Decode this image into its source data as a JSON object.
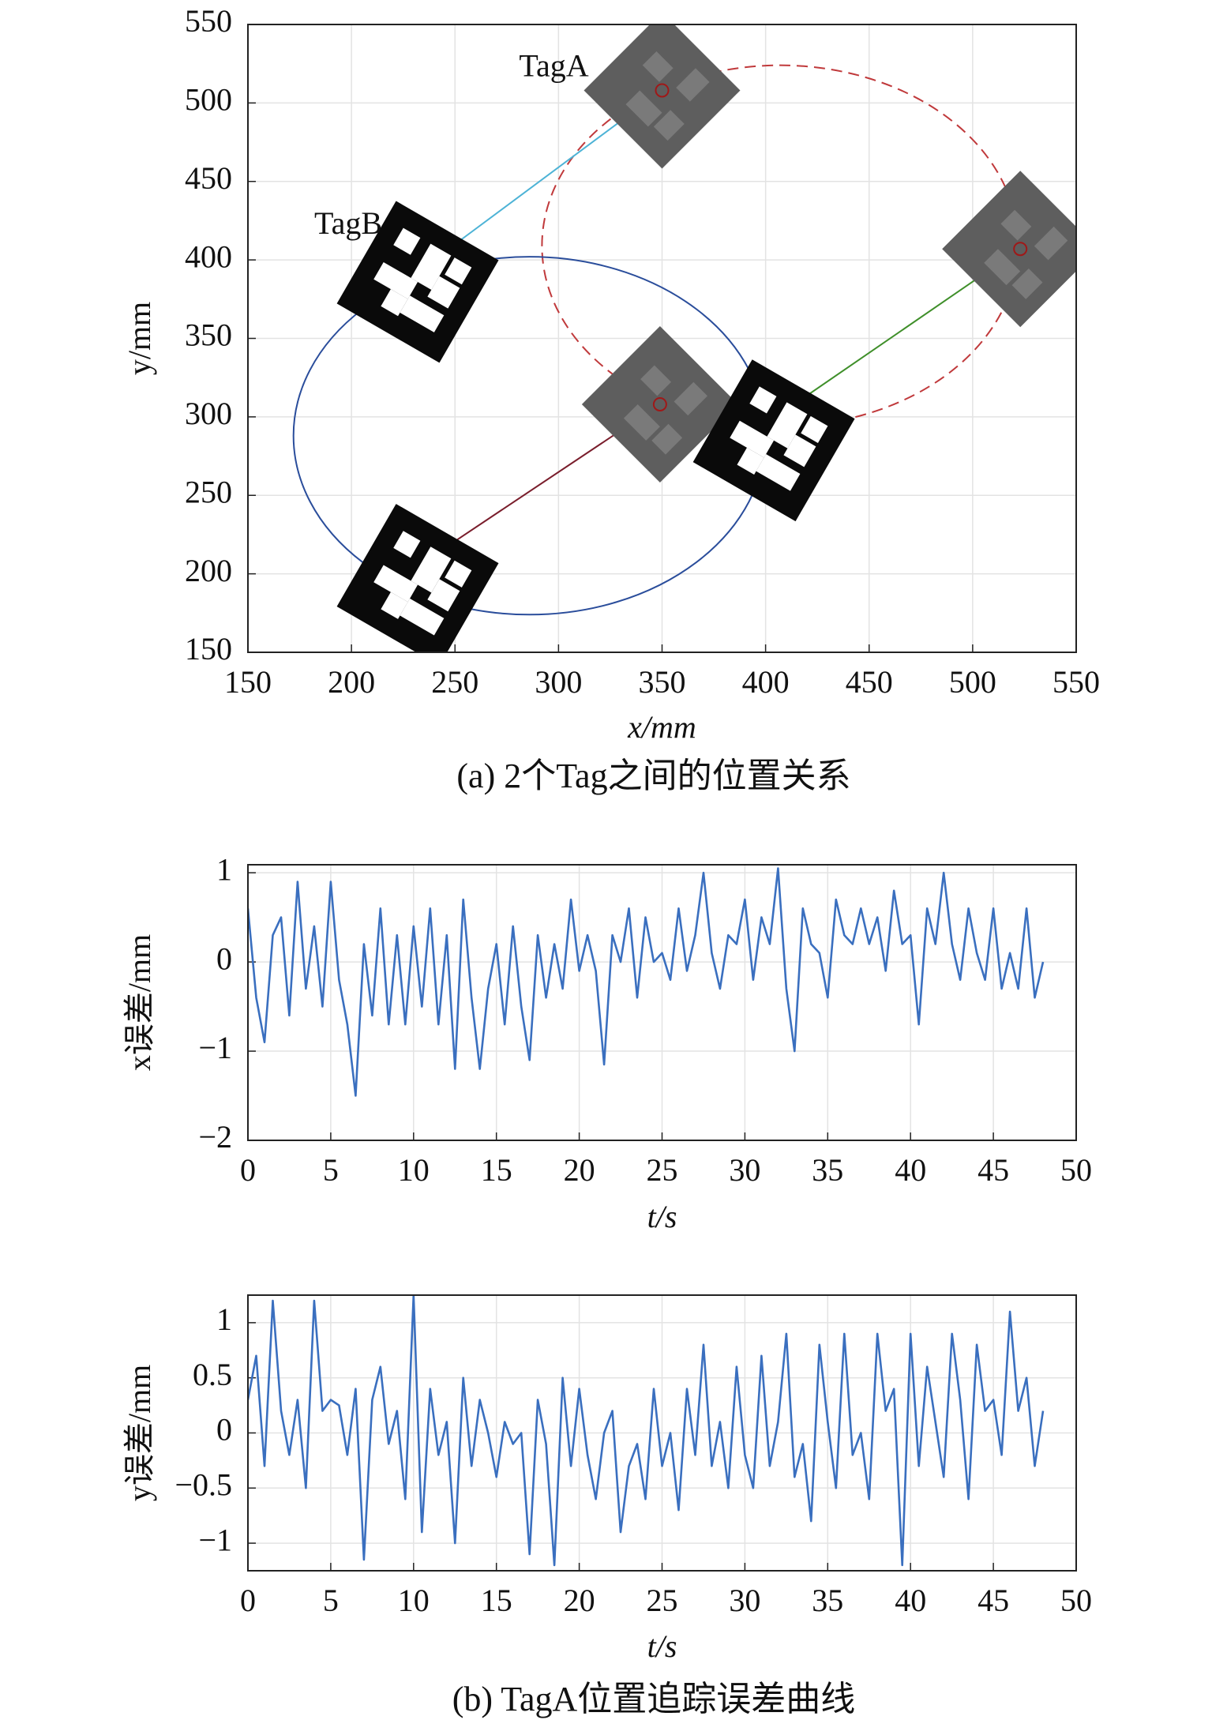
{
  "chart_data": [
    {
      "type": "scatter",
      "caption": "(a) 2个Tag之间的位置关系",
      "xlabel": "x/mm",
      "ylabel": "y/mm",
      "xlim": [
        150,
        550
      ],
      "ylim": [
        150,
        550
      ],
      "xticks": [
        150,
        200,
        250,
        300,
        350,
        400,
        450,
        500,
        550
      ],
      "yticks": [
        150,
        200,
        250,
        300,
        350,
        400,
        450,
        500,
        550
      ],
      "grid": true,
      "circles": [
        {
          "cx": 407,
          "cy": 409,
          "r": 115,
          "color": "#c0393b",
          "dashed": true
        },
        {
          "cx": 286,
          "cy": 288,
          "r": 114,
          "color": "#2a4d9b",
          "dashed": false
        }
      ],
      "segments": [
        {
          "x": [
            250,
            350
          ],
          "y": [
            410,
            508
          ],
          "color": "#4db3d6"
        },
        {
          "x": [
            405,
            523
          ],
          "y": [
            300,
            407
          ],
          "color": "#3f8f2a"
        },
        {
          "x": [
            240,
            349
          ],
          "y": [
            212,
            308
          ],
          "color": "#7a1e2c"
        }
      ],
      "tag_a": {
        "label": "TagA",
        "x": [
          350,
          523,
          349
        ],
        "y": [
          508,
          407,
          308
        ]
      },
      "tag_b": {
        "label": "TagB",
        "x": [
          232,
          232,
          404
        ],
        "y": [
          386,
          193,
          285
        ]
      }
    },
    {
      "type": "line",
      "xlabel": "t/s",
      "ylabel": "x误差/mm",
      "xlim": [
        0,
        50
      ],
      "ylim": [
        -2,
        1.09
      ],
      "xticks": [
        0,
        5,
        10,
        15,
        20,
        25,
        30,
        35,
        40,
        45,
        50
      ],
      "yticks": [
        {
          "value": -2,
          "label": "−2"
        },
        {
          "value": -1,
          "label": "−1"
        },
        0,
        1
      ],
      "grid": true,
      "x": [
        0,
        0.5,
        1,
        1.5,
        2,
        2.5,
        3,
        3.5,
        4,
        4.5,
        5,
        5.5,
        6,
        6.5,
        7,
        7.5,
        8,
        8.5,
        9,
        9.5,
        10,
        10.5,
        11,
        11.5,
        12,
        12.5,
        13,
        13.5,
        14,
        14.5,
        15,
        15.5,
        16,
        16.5,
        17,
        17.5,
        18,
        18.5,
        19,
        19.5,
        20,
        20.5,
        21,
        21.5,
        22,
        22.5,
        23,
        23.5,
        24,
        24.5,
        25,
        25.5,
        26,
        26.5,
        27,
        27.5,
        28,
        28.5,
        29,
        29.5,
        30,
        30.5,
        31,
        31.5,
        32,
        32.5,
        33,
        33.5,
        34,
        34.5,
        35,
        35.5,
        36,
        36.5,
        37,
        37.5,
        38,
        38.5,
        39,
        39.5,
        40,
        40.5,
        41,
        41.5,
        42,
        42.5,
        43,
        43.5,
        44,
        44.5,
        45,
        45.5,
        46,
        46.5,
        47,
        47.5,
        48
      ],
      "series": [
        {
          "color": "#3a6fbf",
          "values": [
            0.6,
            -0.4,
            -0.9,
            0.3,
            0.5,
            -0.6,
            0.9,
            -0.3,
            0.4,
            -0.5,
            0.9,
            -0.2,
            -0.7,
            -1.5,
            0.2,
            -0.6,
            0.6,
            -0.7,
            0.3,
            -0.7,
            0.4,
            -0.5,
            0.6,
            -0.7,
            0.3,
            -1.2,
            0.7,
            -0.4,
            -1.2,
            -0.3,
            0.2,
            -0.7,
            0.4,
            -0.5,
            -1.1,
            0.3,
            -0.4,
            0.2,
            -0.3,
            0.7,
            -0.1,
            0.3,
            -0.1,
            -1.15,
            0.3,
            0,
            0.6,
            -0.4,
            0.5,
            0,
            0.1,
            -0.2,
            0.6,
            -0.1,
            0.3,
            1.0,
            0.1,
            -0.3,
            0.3,
            0.2,
            0.7,
            -0.2,
            0.5,
            0.2,
            1.05,
            -0.3,
            -1.0,
            0.6,
            0.2,
            0.1,
            -0.4,
            0.7,
            0.3,
            0.2,
            0.6,
            0.2,
            0.5,
            -0.1,
            0.8,
            0.2,
            0.3,
            -0.7,
            0.6,
            0.2,
            1.0,
            0.2,
            -0.2,
            0.6,
            0.1,
            -0.2,
            0.6,
            -0.3,
            0.1,
            -0.3,
            0.6,
            -0.4,
            0
          ]
        }
      ]
    },
    {
      "type": "line",
      "xlabel": "t/s",
      "ylabel": "y误差/mm",
      "caption": "(b) TagA位置追踪误差曲线",
      "xlim": [
        0,
        50
      ],
      "ylim": [
        -1.25,
        1.25
      ],
      "xticks": [
        0,
        5,
        10,
        15,
        20,
        25,
        30,
        35,
        40,
        45,
        50
      ],
      "yticks": [
        {
          "value": -1,
          "label": "−1"
        },
        {
          "value": -0.5,
          "label": "−0.5"
        },
        0,
        0.5,
        1
      ],
      "grid": true,
      "x": [
        0,
        0.5,
        1,
        1.5,
        2,
        2.5,
        3,
        3.5,
        4,
        4.5,
        5,
        5.5,
        6,
        6.5,
        7,
        7.5,
        8,
        8.5,
        9,
        9.5,
        10,
        10.5,
        11,
        11.5,
        12,
        12.5,
        13,
        13.5,
        14,
        14.5,
        15,
        15.5,
        16,
        16.5,
        17,
        17.5,
        18,
        18.5,
        19,
        19.5,
        20,
        20.5,
        21,
        21.5,
        22,
        22.5,
        23,
        23.5,
        24,
        24.5,
        25,
        25.5,
        26,
        26.5,
        27,
        27.5,
        28,
        28.5,
        29,
        29.5,
        30,
        30.5,
        31,
        31.5,
        32,
        32.5,
        33,
        33.5,
        34,
        34.5,
        35,
        35.5,
        36,
        36.5,
        37,
        37.5,
        38,
        38.5,
        39,
        39.5,
        40,
        40.5,
        41,
        41.5,
        42,
        42.5,
        43,
        43.5,
        44,
        44.5,
        45,
        45.5,
        46,
        46.5,
        47,
        47.5,
        48
      ],
      "series": [
        {
          "color": "#3a6fbf",
          "values": [
            0.3,
            0.7,
            -0.3,
            1.2,
            0.2,
            -0.2,
            0.3,
            -0.5,
            1.2,
            0.2,
            0.3,
            0.25,
            -0.2,
            0.4,
            -1.15,
            0.3,
            0.6,
            -0.1,
            0.2,
            -0.6,
            1.25,
            -0.9,
            0.4,
            -0.2,
            0.1,
            -1.0,
            0.5,
            -0.3,
            0.3,
            0.0,
            -0.4,
            0.1,
            -0.1,
            0.0,
            -1.1,
            0.3,
            -0.1,
            -1.2,
            0.5,
            -0.3,
            0.4,
            -0.2,
            -0.6,
            0.0,
            0.2,
            -0.9,
            -0.3,
            -0.1,
            -0.6,
            0.4,
            -0.3,
            0.0,
            -0.7,
            0.4,
            -0.2,
            0.8,
            -0.3,
            0.1,
            -0.5,
            0.6,
            -0.2,
            -0.5,
            0.7,
            -0.3,
            0.1,
            0.9,
            -0.4,
            -0.1,
            -0.8,
            0.8,
            0.1,
            -0.5,
            0.9,
            -0.2,
            0.0,
            -0.6,
            0.9,
            0.2,
            0.4,
            -1.2,
            0.9,
            -0.3,
            0.6,
            0.1,
            -0.4,
            0.9,
            0.3,
            -0.6,
            0.8,
            0.2,
            0.3,
            -0.2,
            1.1,
            0.2,
            0.5,
            -0.3,
            0.2
          ]
        }
      ]
    }
  ]
}
